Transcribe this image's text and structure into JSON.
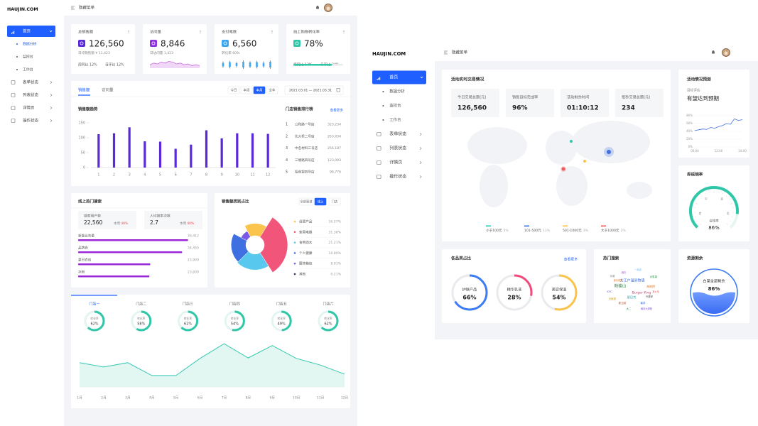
{
  "left": {
    "brand": "HAUJIN.COM",
    "toggle": "隐藏菜单",
    "menu": {
      "home": "首页",
      "sub": [
        "数据分析",
        "监控台",
        "工作台"
      ],
      "items": [
        "表单状态",
        "列表状态",
        "详情页",
        "操作状态"
      ]
    },
    "stats": [
      {
        "title": "总销售额",
        "value": "126,560",
        "note": "日均销售额 ¥ 11,423",
        "footer": [
          "周同比 12%",
          "日环比 12%"
        ]
      },
      {
        "title": "访问量",
        "value": "8,846",
        "note": "日访问量 1,423",
        "sparkline": [
          4,
          6,
          5,
          7,
          6,
          8,
          7,
          5,
          6,
          4,
          5,
          3,
          4,
          3
        ]
      },
      {
        "title": "支付笔数",
        "value": "6,560",
        "note": "转化率 60%",
        "candles": [
          5,
          7,
          4,
          8,
          6,
          7,
          5,
          8
        ]
      },
      {
        "title": "线上购物转化率",
        "value": "78%",
        "footer": [
          "周同比 12%",
          "日环比 24%"
        ],
        "progress": 78
      }
    ],
    "sales": {
      "tabs": [
        "销售额",
        "访问量"
      ],
      "ranges": [
        "今日",
        "本周",
        "本月",
        "全年"
      ],
      "date": "2021.03.01 — 2021.03.31",
      "chart": {
        "type": "bar",
        "title": "销售额趋势",
        "categories": [
          "1",
          "2",
          "3",
          "4",
          "5",
          "6",
          "7",
          "8",
          "9",
          "10",
          "11",
          "12"
        ],
        "values": [
          112,
          115,
          135,
          88,
          87,
          63,
          77,
          125,
          98,
          115,
          115,
          113
        ],
        "ylim": [
          0,
          150
        ],
        "yticks": [
          0,
          50,
          100,
          150
        ],
        "color": "#5a2ad8"
      },
      "ranking": {
        "title": "门店销售排行榜",
        "more": "查看更多",
        "rows": [
          {
            "rank": "1",
            "name": "公和路一号店",
            "value": "323,234"
          },
          {
            "rank": "2",
            "name": "北大桥二号店",
            "value": "263,934"
          },
          {
            "rank": "3",
            "name": "中名材料三号店",
            "value": "256,187"
          },
          {
            "rank": "4",
            "name": "三塘路四号店",
            "value": "123,093"
          },
          {
            "rank": "5",
            "name": "招商银四号店",
            "value": "98,776"
          }
        ]
      }
    },
    "search": {
      "title": "线上热门搜索",
      "boxes": [
        {
          "label": "搜索用户数",
          "value": "22,560",
          "period": "本周",
          "change": "40%"
        },
        {
          "label": "人均搜索次数",
          "value": "2.7",
          "period": "本周",
          "change": "40%"
        }
      ],
      "chart": {
        "type": "hbar",
        "categories": [
          "新能业务量",
          "品牌券",
          "夏日衣包",
          "冰粉"
        ],
        "values": [
          36412,
          34455,
          23909,
          23609
        ],
        "value_labels": [
          "36,412",
          "34,455",
          "23,909",
          "23,609"
        ],
        "xlim": [
          0,
          40000
        ],
        "color": "#9b27d9"
      }
    },
    "category": {
      "type": "rose",
      "title": "销售额类别占比",
      "channels": [
        "全部渠道",
        "线上",
        "门店"
      ],
      "categories": [
        "母婴产品",
        "家用电器",
        "食用酒水",
        "个人健康",
        "服饰箱包",
        "其他"
      ],
      "values": [
        16.57,
        31.38,
        21.21,
        19.8,
        8.91,
        0.21
      ],
      "value_labels": [
        "16.57%",
        "31.38%",
        "21.21%",
        "19.80%",
        "8.91%",
        "0.21%"
      ],
      "colors": [
        "#fbc44d",
        "#f2557a",
        "#59c8ef",
        "#3f6fe0",
        "#7a5ae6",
        "#2b3550"
      ]
    },
    "stores": {
      "type": "ring",
      "categories": [
        "门店一",
        "门店二",
        "门店三",
        "门店四",
        "门店五",
        "门店六"
      ],
      "caption": "转化率",
      "values": [
        62,
        58,
        62,
        54,
        49,
        62
      ],
      "value_labels": [
        "62%",
        "58%",
        "62%",
        "54%",
        "49%",
        "62%"
      ],
      "color": "#2ec7a8",
      "trend": {
        "type": "area",
        "categories": [
          "1月",
          "2月",
          "3月",
          "4月",
          "5月",
          "6月",
          "7月",
          "8月",
          "9月",
          "10月",
          "11月",
          "12月"
        ],
        "values": [
          51,
          42,
          51,
          24,
          24,
          60,
          91,
          61,
          87,
          60,
          46,
          27
        ],
        "ylim": [
          0,
          100
        ],
        "color": "#35c9b0"
      }
    }
  },
  "right": {
    "brand": "HAUJIN.COM",
    "toggle": "隐藏菜单",
    "menu": {
      "home": "首页",
      "sub": [
        "数据分析",
        "监控台",
        "工作台"
      ],
      "items": [
        "表单状态",
        "列表状态",
        "详情页",
        "操作状态"
      ]
    },
    "live": {
      "title": "活动实时交易情况",
      "stats": [
        {
          "label": "今日交易总额(元)",
          "value": "126,560"
        },
        {
          "label": "销售目标完成率",
          "value": "96%"
        },
        {
          "label": "活动剩余时间",
          "value": "01:10:12"
        },
        {
          "label": "每秒交易总额(元)",
          "value": "234"
        }
      ],
      "legend": [
        {
          "name": "小于100元",
          "share": "5%",
          "color": "#2ec7a8"
        },
        {
          "name": "101-500元",
          "share": "11%",
          "color": "#3f6fe0"
        },
        {
          "name": "501-1000元",
          "share": "3%",
          "color": "#fbc44d"
        },
        {
          "name": "大于1000元",
          "share": "2%",
          "color": "#f05a5a"
        }
      ]
    },
    "forecast": {
      "type": "line",
      "title": "活动情况预测",
      "caption": "目标评估",
      "headline": "有望达到预期",
      "categories": [
        "00:00",
        null,
        null,
        null,
        null,
        null,
        "12:00",
        null,
        null,
        null,
        null,
        null,
        "24:00"
      ],
      "values": [
        42,
        44,
        46,
        45,
        50,
        48,
        52,
        55,
        60,
        58,
        72,
        68,
        70
      ],
      "ylim": [
        0,
        80
      ],
      "yticks": [
        {
          "value": 0,
          "label": "0%"
        },
        {
          "value": 20,
          "label": "20%"
        },
        {
          "value": 40,
          "label": "40%"
        },
        {
          "value": 60,
          "label": "60%"
        },
        {
          "value": 80,
          "label": "80%"
        }
      ],
      "color": "#3f6fe0"
    },
    "coupon": {
      "type": "gauge",
      "title": "券核销率",
      "caption": "合格率",
      "value": 86,
      "value_label": "86%",
      "ticks": [
        "差",
        "中",
        "良",
        "优"
      ],
      "color": "#2ec7a8"
    },
    "share": {
      "type": "ring",
      "title": "各品类占比",
      "more": "查看更多",
      "categories": [
        "护肤产品",
        "精华乳液",
        "美容保湿"
      ],
      "values": [
        66,
        28,
        54
      ],
      "value_labels": [
        "66%",
        "28%",
        "54%"
      ],
      "colors": [
        "#3c7cf5",
        "#f04b7a",
        "#fac34a"
      ]
    },
    "hot": {
      "title": "热门搜索",
      "words": [
        "大江户温泉物语",
        "粉猫山",
        "Burger King",
        "海底捞",
        "KFC",
        "星巴克",
        "麦当劳",
        "喜茶",
        "奈雪",
        "必胜客",
        "全聚德",
        "外婆家",
        "西贝",
        "一点点",
        "老乡鸡",
        "太二",
        "我也看雪",
        "南京大排档"
      ]
    },
    "resource": {
      "title": "资源剩余",
      "caption": "白菜全部剩余",
      "value_label": "86%"
    }
  }
}
